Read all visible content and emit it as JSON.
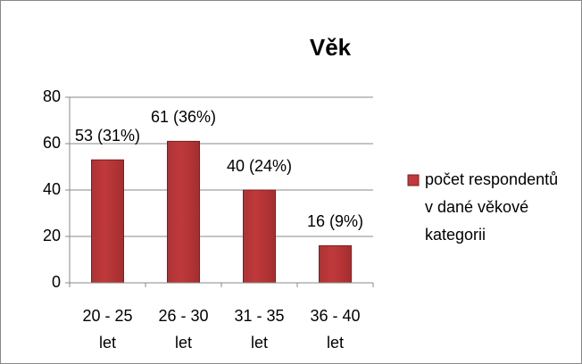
{
  "chart_data": {
    "type": "bar",
    "title": "Věk",
    "categories": [
      "20 - 25 let",
      "26 - 30 let",
      "31 - 35 let",
      "36 - 40 let"
    ],
    "series": [
      {
        "name": "počet respondentů v dané věkové kategorii",
        "color": "#c0393b",
        "values": [
          53,
          61,
          40,
          16
        ],
        "value_labels": [
          "53 (31%)",
          "61 (36%)",
          "40 (24%)",
          "16 (9%)"
        ]
      }
    ],
    "ylim": [
      0,
      80
    ],
    "yticks": [
      0,
      20,
      40,
      60,
      80
    ],
    "grid": true,
    "legend": "right"
  }
}
